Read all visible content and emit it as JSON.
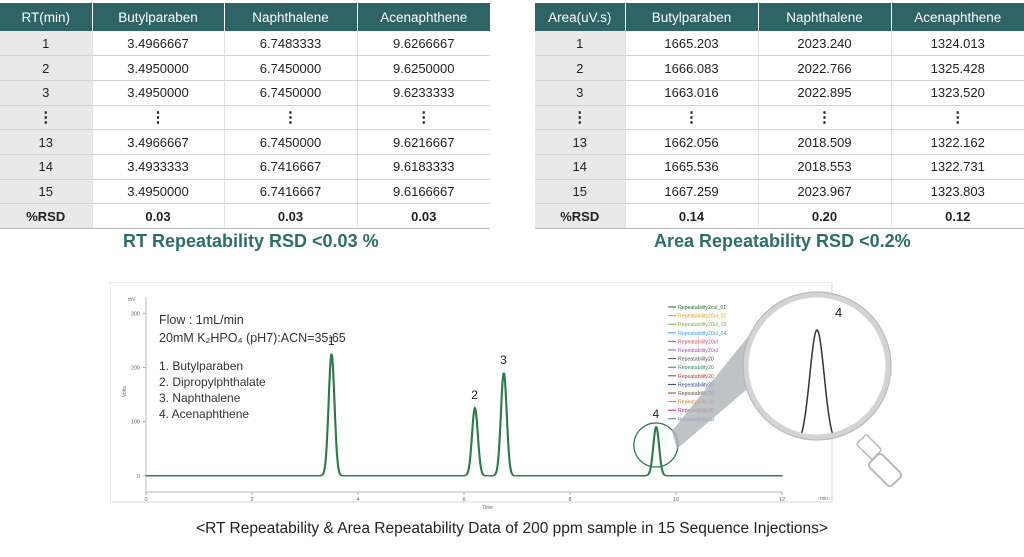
{
  "rt_table": {
    "headers": [
      "RT(min)",
      "Butylparaben",
      "Naphthalene",
      "Acenaphthene"
    ],
    "rows": [
      [
        "1",
        "3.4966667",
        "6.7483333",
        "9.6266667"
      ],
      [
        "2",
        "3.4950000",
        "6.7450000",
        "9.6250000"
      ],
      [
        "3",
        "3.4950000",
        "6.7450000",
        "9.6233333"
      ],
      [
        "⋮",
        "⋮",
        "⋮",
        "⋮"
      ],
      [
        "13",
        "3.4966667",
        "6.7450000",
        "9.6216667"
      ],
      [
        "14",
        "3.4933333",
        "6.7416667",
        "9.6183333"
      ],
      [
        "15",
        "3.4950000",
        "6.7416667",
        "9.6166667"
      ]
    ],
    "rsd": [
      "%RSD",
      "0.03",
      "0.03",
      "0.03"
    ]
  },
  "area_table": {
    "headers": [
      "Area(uV.s)",
      "Butylparaben",
      "Naphthalene",
      "Acenaphthene"
    ],
    "rows": [
      [
        "1",
        "1665.203",
        "2023.240",
        "1324.013"
      ],
      [
        "2",
        "1666.083",
        "2022.766",
        "1325.428"
      ],
      [
        "3",
        "1663.016",
        "2022.895",
        "1323.520"
      ],
      [
        "⋮",
        "⋮",
        "⋮",
        "⋮"
      ],
      [
        "13",
        "1662.056",
        "2018.509",
        "1322.162"
      ],
      [
        "14",
        "1665.536",
        "2018.553",
        "1322.731"
      ],
      [
        "15",
        "1667.259",
        "2023.967",
        "1323.803"
      ]
    ],
    "rsd": [
      "%RSD",
      "0.14",
      "0.20",
      "0.12"
    ]
  },
  "rt_title": "RT Repeatability RSD <0.03 %",
  "area_title": "Area Repeatability RSD <0.2%",
  "chart_data": {
    "type": "line",
    "xunit": "min",
    "yunit": "mV",
    "xlabel": "Time",
    "ylabel": "Volts",
    "xlim": [
      0,
      12
    ],
    "ylim": [
      -30,
      330
    ],
    "xticks": [
      "0",
      "2",
      "4",
      "6",
      "8",
      "10",
      "12"
    ],
    "yticks": [
      "0",
      "100",
      "200",
      "300"
    ],
    "conditions": [
      "Flow : 1mL/min",
      "20mM K₂HPO₄ (pH7):ACN=35:65"
    ],
    "compounds": [
      "1. Butylparaben",
      "2. Dipropylphthalate",
      "3. Naphthalene",
      "4. Acenaphthene"
    ],
    "peaks": [
      {
        "label": "1",
        "rt": 3.495,
        "height": 225
      },
      {
        "label": "2",
        "rt": 6.2,
        "height": 125
      },
      {
        "label": "3",
        "rt": 6.745,
        "height": 190
      },
      {
        "label": "4",
        "rt": 9.62,
        "height": 90
      }
    ],
    "legend": [
      "Repeatability2cul_01",
      "Repeatability20ul_02",
      "Repeatability20ul_03",
      "Repeatability20ul_04",
      "Repeatability20ul",
      "Repeatability20ul",
      "Repeatability20",
      "Repeatability20",
      "Repeatability20",
      "Repeatability20",
      "Repeatability20",
      "Repeatability20",
      "Repeatability20",
      "Repeatability20"
    ],
    "legend_colors": [
      "#1f6b3a",
      "#d4a017",
      "#7fae3a",
      "#3aa0d8",
      "#d04a5a",
      "#9b59b6",
      "#555555",
      "#2e8b57",
      "#c0392b",
      "#1f3a93",
      "#6d4c41",
      "#e67e22",
      "#c71585",
      "#4a6fa5"
    ],
    "zoom_label": "4"
  },
  "caption": "<RT Repeatability & Area Repeatability Data of 200 ppm sample in 15 Sequence Injections>"
}
